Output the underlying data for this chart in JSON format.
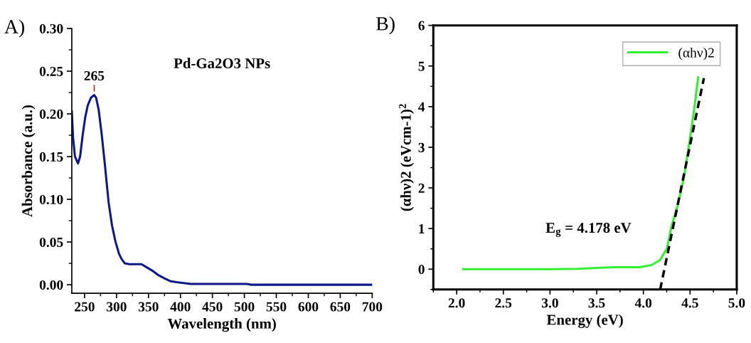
{
  "chart_data": [
    {
      "type": "line",
      "title": "Pd-Ga2O3 NPs",
      "xlabel": "Wavelength (nm)",
      "ylabel": "Absorbance (a.u.)",
      "annotations": [
        "A)",
        {
          "text": "265",
          "x": 265,
          "y": 0.222
        }
      ],
      "xlim": [
        230,
        700
      ],
      "xticks": [
        250,
        300,
        350,
        400,
        450,
        500,
        550,
        600,
        650,
        700
      ],
      "ylim": [
        -0.01,
        0.3
      ],
      "yticks": [
        {
          "value": 0,
          "label": "0.00"
        },
        0.05,
        {
          "value": 0.1,
          "label": "0.10"
        },
        0.15,
        {
          "value": 0.2,
          "label": "0.20"
        },
        0.25,
        {
          "value": 0.3,
          "label": "0.30"
        }
      ],
      "grid": false,
      "legend": false,
      "series": [
        {
          "color": "#0d1a85",
          "x": [
            230,
            232,
            235,
            239.7,
            243,
            247,
            251,
            255,
            260,
            265,
            268,
            272,
            276.5,
            282,
            287.5,
            293,
            298.5,
            304,
            308,
            313,
            320,
            330,
            339,
            348,
            357,
            366,
            376,
            385,
            394,
            416,
            504,
            510,
            700
          ],
          "values": [
            0.203,
            0.172,
            0.15,
            0.142,
            0.15,
            0.175,
            0.196,
            0.21,
            0.219,
            0.222,
            0.219,
            0.205,
            0.178,
            0.139,
            0.097,
            0.069,
            0.05,
            0.036,
            0.03,
            0.025,
            0.024,
            0.024,
            0.024,
            0.02,
            0.016,
            0.011,
            0.007,
            0.004,
            0.003,
            0.001,
            0.001,
            0,
            0
          ]
        }
      ]
    },
    {
      "type": "line",
      "xlabel": "Energy (eV)",
      "ylabel": "(αhν)2 (eVcm-1)$^{2}$",
      "annotations": [
        "B)",
        "E$_{g}$ = 4.178 eV"
      ],
      "xlim": [
        1.75,
        5.0
      ],
      "xticks": [
        {
          "value": 2,
          "label": "2.0"
        },
        2.5,
        {
          "value": 3,
          "label": "3.0"
        },
        3.5,
        {
          "value": 4,
          "label": "4.0"
        },
        4.5,
        {
          "value": 5,
          "label": "5.0"
        }
      ],
      "ylim": [
        -0.5,
        6
      ],
      "yticks": [
        0,
        1,
        2,
        3,
        4,
        5,
        6
      ],
      "grid": false,
      "legend": "top right",
      "series": [
        {
          "name": "(αhν)2",
          "color": "#33ee33",
          "line_style": "solid",
          "x": [
            2.07,
            2.5,
            3.0,
            3.3,
            3.5,
            3.7,
            3.96,
            4.087,
            4.176,
            4.253,
            4.3,
            4.367,
            4.431,
            4.495,
            4.546,
            4.587
          ],
          "values": [
            0,
            0,
            0,
            0.01,
            0.03,
            0.05,
            0.05,
            0.1,
            0.22,
            0.51,
            1.04,
            1.57,
            2.21,
            3.15,
            3.96,
            4.72
          ]
        },
        {
          "color": "#000000",
          "line_style": "dashed",
          "x": [
            4.18,
            4.648
          ],
          "values": [
            -0.5,
            4.7
          ]
        }
      ]
    }
  ]
}
